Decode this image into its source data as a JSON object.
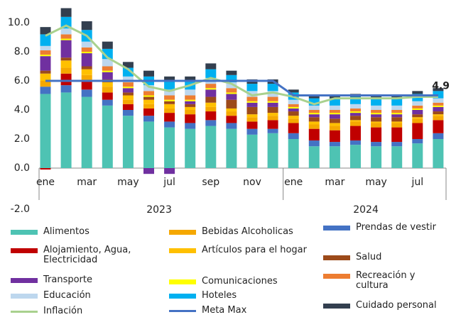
{
  "chart_data": {
    "type": "stacked_bar",
    "categories": [
      "ene",
      null,
      "mar",
      null,
      "may",
      null,
      "jul",
      null,
      "sep",
      null,
      "nov",
      null,
      "ene",
      null,
      "mar",
      null,
      "may",
      null,
      "jul",
      null
    ],
    "groups": [
      {
        "label": "2023",
        "count": 12
      },
      {
        "label": "2024",
        "count": 8
      }
    ],
    "ylim": [
      -2,
      10.4
    ],
    "yticks": [
      {
        "value": -2,
        "label": "-2.0"
      },
      {
        "value": 0,
        "label": "0.0"
      },
      {
        "value": 2,
        "label": "2.0"
      },
      {
        "value": 4,
        "label": "4.0"
      },
      {
        "value": 6,
        "label": "6.0"
      },
      {
        "value": 8,
        "label": "8.0"
      },
      {
        "value": 10,
        "label": "10.0"
      }
    ],
    "series": [
      {
        "name": "Alimentos",
        "color": "#4ec3b3",
        "values": [
          5.1,
          5.2,
          4.9,
          4.3,
          3.6,
          3.2,
          2.8,
          2.7,
          2.9,
          2.7,
          2.3,
          2.4,
          2.0,
          1.5,
          1.5,
          1.6,
          1.5,
          1.5,
          1.7,
          2.0
        ]
      },
      {
        "name": "Prendas de vestir",
        "color": "#4472c4",
        "values": [
          0.5,
          0.5,
          0.5,
          0.4,
          0.4,
          0.4,
          0.4,
          0.4,
          0.4,
          0.4,
          0.4,
          0.3,
          0.4,
          0.4,
          0.3,
          0.3,
          0.3,
          0.3,
          0.3,
          0.4
        ]
      },
      {
        "name": "Alojamiento, Agua, Electricidad",
        "color": "#c00000",
        "values": [
          -0.1,
          0.8,
          0.6,
          0.5,
          0.4,
          0.5,
          0.6,
          0.6,
          0.6,
          0.5,
          0.5,
          0.6,
          0.7,
          0.8,
          0.8,
          1.0,
          1.0,
          1.0,
          1.1,
          0.9
        ]
      },
      {
        "name": "Bebidas Alcoholicas",
        "color": "#f5a800",
        "values": [
          0.4,
          0.4,
          0.4,
          0.4,
          0.3,
          0.3,
          0.3,
          0.3,
          0.3,
          0.3,
          0.3,
          0.3,
          0.3,
          0.3,
          0.3,
          0.3,
          0.3,
          0.3,
          0.3,
          0.3
        ]
      },
      {
        "name": "Artículos para el hogar",
        "color": "#ffc000",
        "values": [
          0.5,
          0.5,
          0.4,
          0.3,
          0.3,
          0.3,
          0.3,
          0.2,
          0.3,
          0.2,
          0.2,
          0.2,
          0.2,
          0.2,
          0.2,
          0.1,
          0.1,
          0.1,
          0.1,
          0.1
        ]
      },
      {
        "name": "Salud",
        "color": "#9c4a1a",
        "values": [
          0.2,
          0.2,
          0.2,
          0.2,
          0.2,
          0.2,
          0.2,
          0.2,
          0.4,
          0.6,
          0.5,
          0.4,
          0.3,
          0.3,
          0.3,
          0.3,
          0.3,
          0.3,
          0.2,
          0.2
        ]
      },
      {
        "name": "Transporte",
        "color": "#7030a0",
        "values": [
          1.0,
          1.2,
          0.9,
          0.5,
          0.3,
          -0.4,
          -0.4,
          0.2,
          0.5,
          0.4,
          0.3,
          0.3,
          0.2,
          0.2,
          0.3,
          0.2,
          0.2,
          0.2,
          0.3,
          0.3
        ]
      },
      {
        "name": "Comunicaciones",
        "color": "#ffff00",
        "values": [
          0.1,
          0.1,
          0.1,
          0.1,
          0.1,
          0.1,
          0.1,
          0.1,
          0.1,
          0.1,
          0.1,
          0.1,
          0.1,
          0.1,
          0.1,
          0.1,
          0.1,
          0.1,
          0.1,
          0.1
        ]
      },
      {
        "name": "Recreación y cultura",
        "color": "#ed7d31",
        "values": [
          0.3,
          0.3,
          0.3,
          0.3,
          0.3,
          0.3,
          0.3,
          0.3,
          0.3,
          0.3,
          0.3,
          0.3,
          0.2,
          0.2,
          0.2,
          0.2,
          0.2,
          0.2,
          0.2,
          0.2
        ]
      },
      {
        "name": "Educación",
        "color": "#bdd7ee",
        "values": [
          0.3,
          0.4,
          0.4,
          0.5,
          0.4,
          0.4,
          0.4,
          0.4,
          0.4,
          0.4,
          0.4,
          0.4,
          0.3,
          0.3,
          0.3,
          0.3,
          0.3,
          0.3,
          0.3,
          0.3
        ]
      },
      {
        "name": "Hoteles",
        "color": "#00b0f0",
        "values": [
          0.8,
          0.8,
          0.8,
          0.7,
          0.6,
          0.6,
          0.6,
          0.6,
          0.6,
          0.5,
          0.5,
          0.5,
          0.5,
          0.5,
          0.5,
          0.5,
          0.5,
          0.5,
          0.5,
          0.5
        ]
      },
      {
        "name": "Cuidado personal",
        "color": "#333f4f",
        "values": [
          0.5,
          0.6,
          0.6,
          0.5,
          0.4,
          0.4,
          0.3,
          0.3,
          0.4,
          0.3,
          0.3,
          0.3,
          0.2,
          0.2,
          0.2,
          0.2,
          0.2,
          0.2,
          0.2,
          0.2
        ]
      }
    ],
    "lines": [
      {
        "name": "Inflación",
        "color": "#a9d18e",
        "values": [
          9.1,
          9.8,
          9.1,
          7.6,
          6.8,
          5.6,
          5.3,
          5.7,
          6.2,
          5.8,
          5.0,
          5.2,
          4.9,
          4.4,
          4.8,
          4.8,
          4.8,
          4.8,
          4.9,
          4.9
        ]
      },
      {
        "name": "Meta Max",
        "color": "#4472c4",
        "values": [
          6,
          6,
          6,
          6,
          6,
          6,
          6,
          6,
          6,
          6,
          6,
          6,
          5,
          5,
          5,
          5,
          5,
          5,
          5,
          5
        ]
      }
    ],
    "end_label_line": 0
  }
}
